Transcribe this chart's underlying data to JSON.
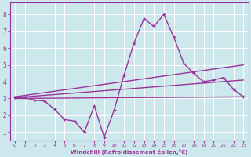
{
  "xlabel": "Windchill (Refroidissement éolien,°C)",
  "background_color": "#cce8ec",
  "line_color": "#993399",
  "grid_color": "#ffffff",
  "xlim": [
    -0.5,
    23.5
  ],
  "ylim": [
    0.5,
    8.7
  ],
  "xticks": [
    0,
    1,
    2,
    3,
    4,
    5,
    6,
    7,
    8,
    9,
    10,
    11,
    12,
    13,
    14,
    15,
    16,
    17,
    18,
    19,
    20,
    21,
    22,
    23
  ],
  "yticks": [
    1,
    2,
    3,
    4,
    5,
    6,
    7,
    8
  ],
  "series": [
    {
      "x": [
        0,
        23
      ],
      "y": [
        3.0,
        3.1
      ],
      "marker": false,
      "linewidth": 1.0
    },
    {
      "x": [
        0,
        23
      ],
      "y": [
        3.05,
        4.1
      ],
      "marker": false,
      "linewidth": 1.0
    },
    {
      "x": [
        0,
        23
      ],
      "y": [
        3.1,
        5.0
      ],
      "marker": false,
      "linewidth": 1.0
    },
    {
      "x": [
        0,
        1,
        2,
        3,
        4,
        5,
        6,
        7,
        8,
        9,
        10,
        11,
        12,
        13,
        14,
        15,
        16,
        17,
        18,
        19,
        20,
        21,
        22,
        23
      ],
      "y": [
        3.05,
        3.05,
        2.9,
        2.85,
        2.35,
        1.75,
        1.65,
        1.0,
        2.55,
        0.7,
        2.3,
        4.4,
        6.3,
        7.75,
        7.3,
        8.0,
        6.65,
        5.1,
        4.5,
        4.0,
        4.1,
        4.25,
        3.55,
        3.1
      ],
      "marker": true,
      "linewidth": 1.0
    }
  ]
}
